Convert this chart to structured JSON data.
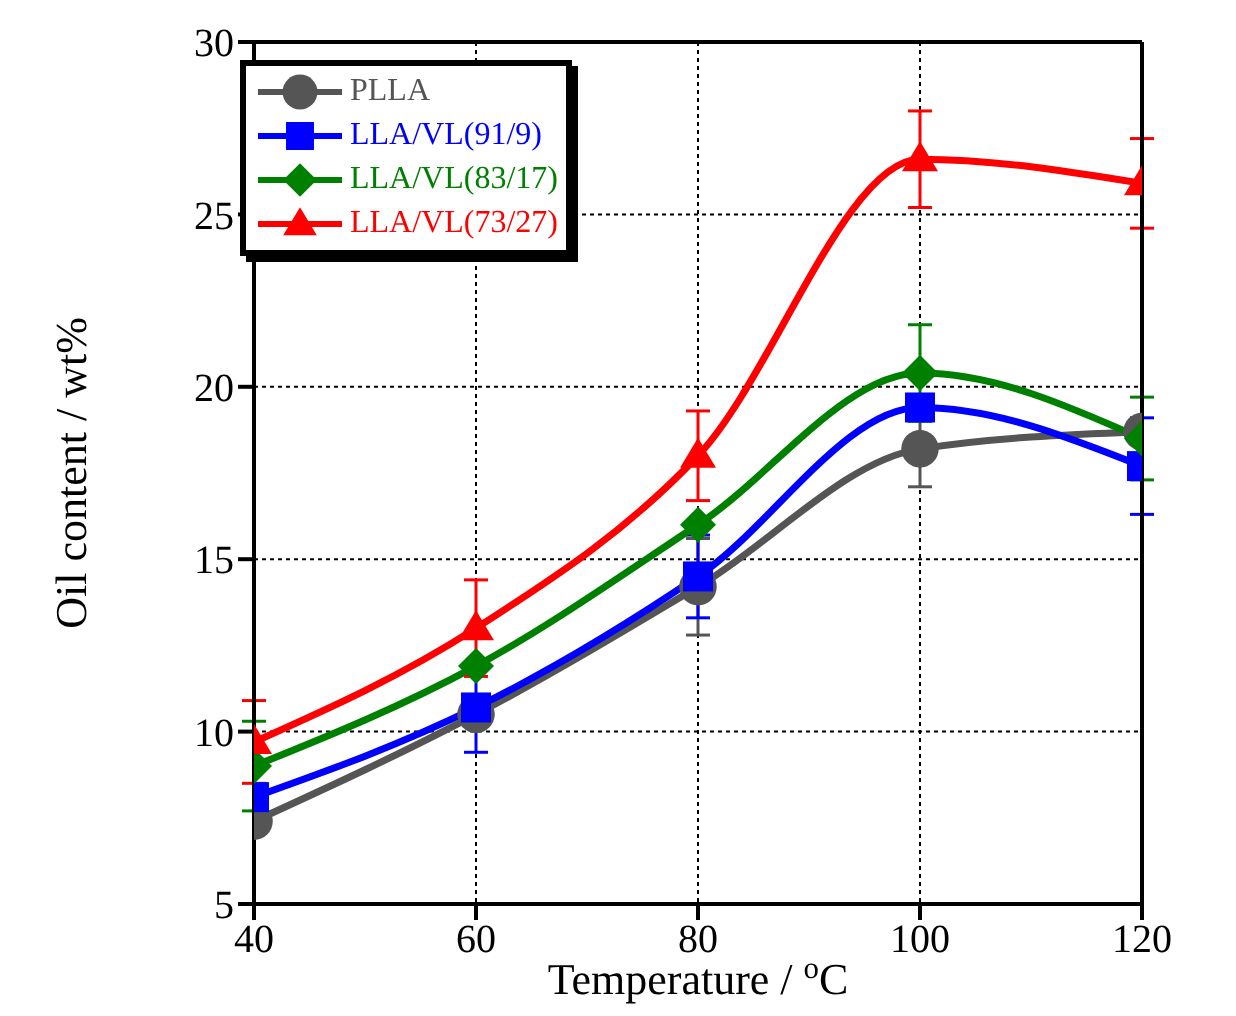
{
  "chart_data": {
    "type": "line",
    "xlabel": "Temperature / $^{o}$C",
    "ylabel": "Oil content / wt%",
    "x": [
      40,
      60,
      80,
      100,
      120
    ],
    "series": [
      {
        "name": "PLLA",
        "color": "#555555",
        "marker": "circle",
        "values": [
          7.4,
          10.5,
          14.2,
          18.2,
          18.7
        ],
        "errors": [
          null,
          null,
          1.4,
          1.1,
          null
        ]
      },
      {
        "name": "LLA/VL(91/9)",
        "color": "#0000ff",
        "marker": "square",
        "values": [
          8.1,
          10.7,
          14.5,
          19.4,
          17.7
        ],
        "errors": [
          null,
          1.3,
          1.2,
          null,
          1.4
        ]
      },
      {
        "name": "LLA/VL(83/17)",
        "color": "#008000",
        "marker": "diamond",
        "values": [
          9.0,
          11.9,
          16.0,
          20.4,
          18.5
        ],
        "errors": [
          1.3,
          null,
          null,
          1.4,
          1.2
        ]
      },
      {
        "name": "LLA/VL(73/27)",
        "color": "#ff0000",
        "marker": "triangle",
        "values": [
          9.7,
          13.0,
          18.0,
          26.6,
          25.9
        ],
        "errors": [
          1.2,
          1.4,
          1.3,
          1.4,
          1.3
        ]
      }
    ],
    "xlim": [
      40,
      120
    ],
    "xticks": [
      40,
      60,
      80,
      100,
      120
    ],
    "ylim": [
      5,
      30
    ],
    "yticks": [
      5,
      10,
      15,
      20,
      25,
      30
    ],
    "grid": true,
    "legend": "top left"
  }
}
